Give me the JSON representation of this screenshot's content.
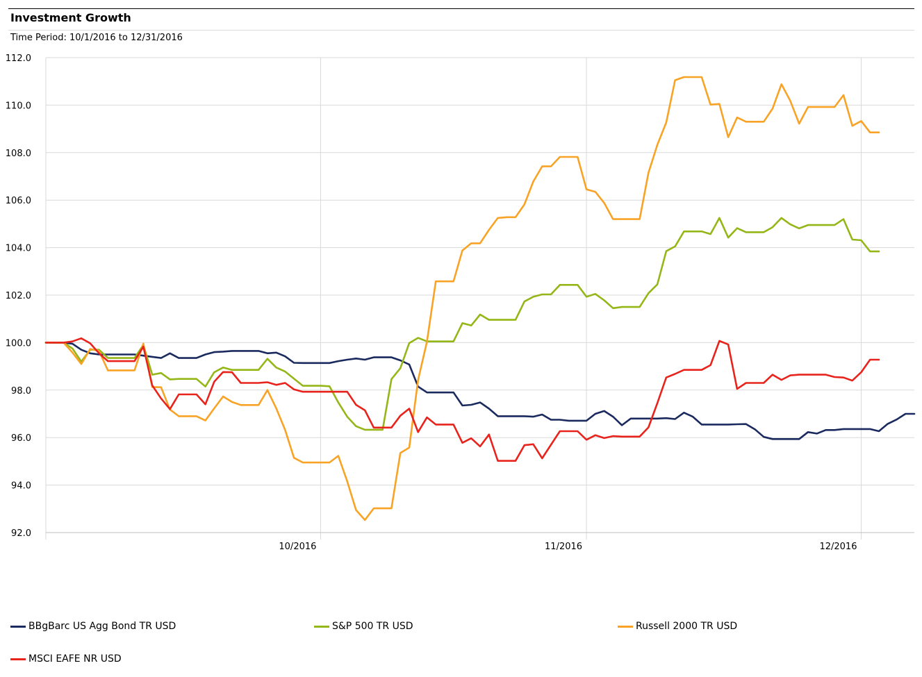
{
  "header": {
    "title": "Investment Growth",
    "subtitle": "Time Period: 10/1/2016 to 12/31/2016"
  },
  "chart_data": {
    "type": "line",
    "title": "Investment Growth",
    "subtitle": "Time Period: 10/1/2016 to 12/31/2016",
    "ylim": [
      92,
      112
    ],
    "yticks": [
      "112.0",
      "110.0",
      "108.0",
      "106.0",
      "104.0",
      "102.0",
      "100.0",
      "98.0",
      "96.0",
      "94.0",
      "92.0"
    ],
    "xticks": [
      {
        "label": "10/2016",
        "index": 31
      },
      {
        "label": "11/2016",
        "index": 61
      },
      {
        "label": "12/2016",
        "index": 92
      }
    ],
    "grid": true,
    "legend_position": "bottom",
    "series": [
      {
        "name": "BBgBarc US Agg Bond TR USD",
        "color": "#1a2a5e",
        "values": [
          100.0,
          100.0,
          100.0,
          99.95,
          99.7,
          99.55,
          99.5,
          99.5,
          99.5,
          99.5,
          99.5,
          99.45,
          99.4,
          99.35,
          99.55,
          99.35,
          99.35,
          99.35,
          99.5,
          99.6,
          99.62,
          99.65,
          99.65,
          99.65,
          99.65,
          99.55,
          99.58,
          99.42,
          99.15,
          99.14,
          99.14,
          99.14,
          99.14,
          99.22,
          99.28,
          99.33,
          99.28,
          99.38,
          99.38,
          99.38,
          99.25,
          99.08,
          98.15,
          97.9,
          97.9,
          97.9,
          97.9,
          97.35,
          97.38,
          97.48,
          97.22,
          96.9,
          96.9,
          96.9,
          96.9,
          96.88,
          96.97,
          96.75,
          96.75,
          96.71,
          96.71,
          96.71,
          97.0,
          97.12,
          96.88,
          96.52,
          96.8,
          96.8,
          96.8,
          96.8,
          96.82,
          96.78,
          97.05,
          96.88,
          96.55,
          96.55,
          96.55,
          96.55,
          96.56,
          96.57,
          96.35,
          96.03,
          95.94,
          95.94,
          95.94,
          95.94,
          96.23,
          96.17,
          96.32,
          96.32,
          96.36,
          96.36,
          96.36,
          96.36,
          96.27,
          96.58,
          96.76,
          97.0,
          97.0
        ]
      },
      {
        "name": "S&P 500 TR USD",
        "color": "#95b617",
        "values": [
          100.0,
          100.0,
          100.0,
          99.75,
          99.2,
          99.7,
          99.7,
          99.35,
          99.35,
          99.35,
          99.35,
          99.9,
          98.65,
          98.72,
          98.45,
          98.47,
          98.47,
          98.47,
          98.15,
          98.75,
          98.95,
          98.85,
          98.85,
          98.85,
          98.85,
          99.32,
          98.95,
          98.78,
          98.48,
          98.18,
          98.18,
          98.18,
          98.16,
          97.48,
          96.88,
          96.48,
          96.33,
          96.33,
          96.33,
          98.46,
          98.92,
          99.98,
          100.2,
          100.05,
          100.05,
          100.05,
          100.05,
          100.82,
          100.72,
          101.18,
          100.96,
          100.96,
          100.96,
          100.96,
          101.73,
          101.93,
          102.03,
          102.03,
          102.43,
          102.43,
          102.43,
          101.93,
          102.05,
          101.78,
          101.45,
          101.5,
          101.5,
          101.5,
          102.08,
          102.45,
          103.85,
          104.05,
          104.68,
          104.68,
          104.68,
          104.57,
          105.25,
          104.42,
          104.82,
          104.65,
          104.65,
          104.65,
          104.86,
          105.25,
          104.98,
          104.81,
          104.95,
          104.95,
          104.95,
          104.95,
          105.2,
          104.34,
          104.31,
          103.84,
          103.84
        ]
      },
      {
        "name": "Russell 2000 TR USD",
        "color": "#f8a325",
        "values": [
          100.0,
          100.0,
          100.0,
          99.58,
          99.1,
          99.73,
          99.65,
          98.83,
          98.83,
          98.83,
          98.83,
          99.96,
          98.13,
          98.12,
          97.18,
          96.9,
          96.9,
          96.9,
          96.72,
          97.23,
          97.73,
          97.5,
          97.37,
          97.37,
          97.37,
          98.0,
          97.23,
          96.32,
          95.15,
          94.95,
          94.95,
          94.95,
          94.95,
          95.23,
          94.16,
          92.95,
          92.53,
          93.02,
          93.02,
          93.02,
          95.35,
          95.58,
          98.42,
          100.04,
          102.58,
          102.58,
          102.58,
          103.88,
          104.18,
          104.18,
          104.75,
          105.25,
          105.28,
          105.28,
          105.82,
          106.78,
          107.42,
          107.42,
          107.82,
          107.82,
          107.82,
          106.45,
          106.35,
          105.88,
          105.2,
          105.2,
          105.2,
          105.2,
          107.15,
          108.33,
          109.27,
          111.05,
          111.18,
          111.18,
          111.18,
          110.02,
          110.05,
          108.65,
          109.48,
          109.3,
          109.3,
          109.3,
          109.85,
          110.88,
          110.18,
          109.22,
          109.92,
          109.92,
          109.92,
          109.92,
          110.42,
          109.13,
          109.33,
          108.85,
          108.85
        ]
      },
      {
        "name": "MSCI EAFE NR USD",
        "color": "#e8231c",
        "values": [
          100.0,
          100.0,
          100.0,
          100.05,
          100.18,
          99.97,
          99.55,
          99.22,
          99.22,
          99.22,
          99.22,
          99.83,
          98.2,
          97.65,
          97.2,
          97.82,
          97.82,
          97.82,
          97.4,
          98.35,
          98.76,
          98.75,
          98.3,
          98.3,
          98.3,
          98.33,
          98.22,
          98.3,
          98.03,
          97.93,
          97.93,
          97.93,
          97.93,
          97.93,
          97.93,
          97.38,
          97.15,
          96.42,
          96.42,
          96.42,
          96.92,
          97.22,
          96.23,
          96.85,
          96.55,
          96.55,
          96.55,
          95.78,
          95.97,
          95.63,
          96.13,
          95.02,
          95.02,
          95.02,
          95.68,
          95.72,
          95.13,
          95.7,
          96.27,
          96.27,
          96.27,
          95.91,
          96.1,
          95.98,
          96.06,
          96.04,
          96.04,
          96.04,
          96.43,
          97.45,
          98.53,
          98.68,
          98.85,
          98.85,
          98.85,
          99.05,
          100.07,
          99.92,
          98.05,
          98.3,
          98.3,
          98.3,
          98.65,
          98.43,
          98.62,
          98.65,
          98.65,
          98.65,
          98.65,
          98.55,
          98.53,
          98.4,
          98.75,
          99.28,
          99.28
        ]
      }
    ]
  }
}
